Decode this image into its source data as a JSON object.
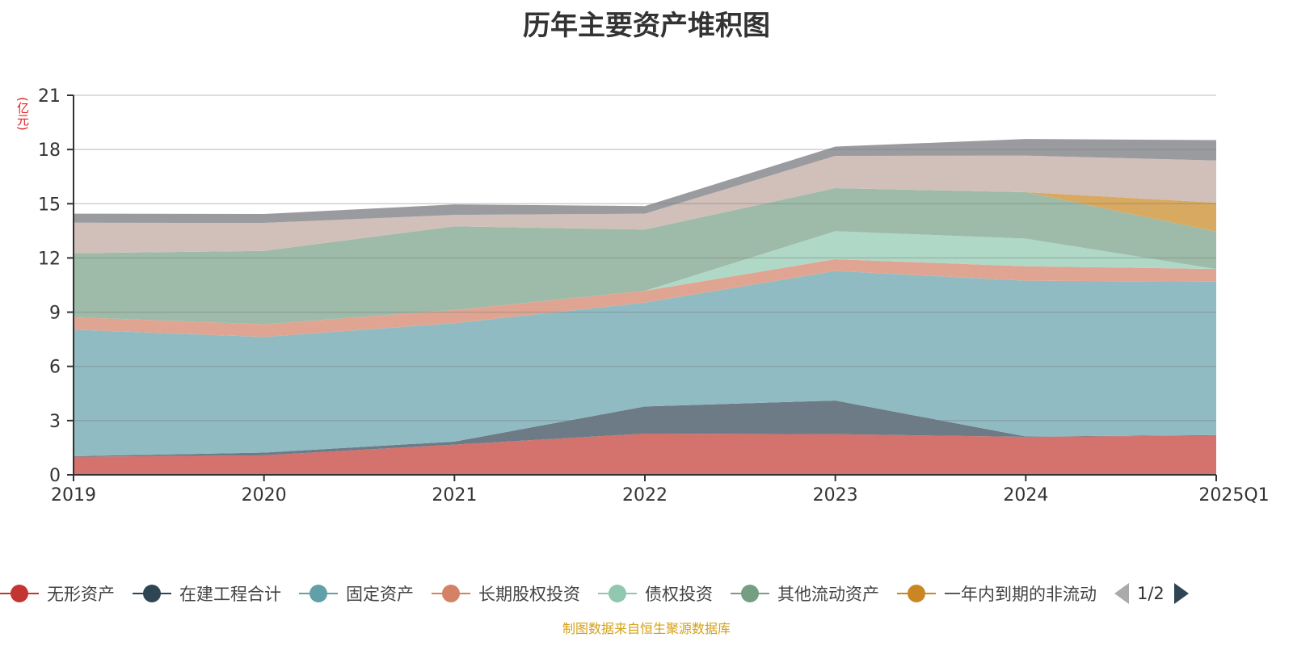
{
  "title": "历年主要资产堆积图",
  "footer": "制图数据来自恒生聚源数据库",
  "legend_pager": "1/2",
  "chart_data": {
    "type": "area",
    "stacked": true,
    "title": "历年主要资产堆积图",
    "ylabel": "(亿元)",
    "xlabel": "",
    "ylim": [
      0,
      21
    ],
    "yticks": [
      0,
      3,
      6,
      9,
      12,
      15,
      18,
      21
    ],
    "grid": true,
    "legend_position": "bottom",
    "categories": [
      "2019",
      "2020",
      "2021",
      "2022",
      "2023",
      "2024",
      "2025Q1"
    ],
    "series": [
      {
        "name": "无形资产",
        "color": "#c23531",
        "fill": "#d4726e",
        "values": [
          1.0,
          1.08,
          1.67,
          2.28,
          2.25,
          2.1,
          2.17
        ]
      },
      {
        "name": "在建工程合计",
        "color": "#2f4554",
        "fill": "#6d7b86",
        "values": [
          0.03,
          0.15,
          0.17,
          1.5,
          1.86,
          0.02,
          0.03
        ]
      },
      {
        "name": "固定资产",
        "color": "#61a0a8",
        "fill": "#90bbc2",
        "values": [
          7.0,
          6.4,
          6.55,
          5.75,
          7.17,
          8.62,
          8.49
        ]
      },
      {
        "name": "长期股权投资",
        "color": "#d48265",
        "fill": "#e0a592",
        "values": [
          0.69,
          0.7,
          0.73,
          0.65,
          0.65,
          0.8,
          0.7
        ]
      },
      {
        "name": "债权投资",
        "color": "#91c7ae",
        "fill": "#afd8c6",
        "values": [
          0,
          0,
          0,
          0,
          1.55,
          1.53,
          0
        ]
      },
      {
        "name": "其他流动资产",
        "color": "#749f83",
        "fill": "#9dbba8",
        "values": [
          3.54,
          4.06,
          4.63,
          3.39,
          2.38,
          2.57,
          2.07
        ]
      },
      {
        "name": "一年内到期的非流动",
        "color": "#ca8622",
        "fill": "#d8a961",
        "values": [
          0,
          0,
          0,
          0,
          0,
          0,
          1.6
        ]
      },
      {
        "name": "",
        "color": "#bda29a",
        "fill": "#d1bfba",
        "values": [
          1.69,
          1.55,
          0.63,
          0.88,
          1.79,
          2.02,
          2.33
        ]
      },
      {
        "name": "",
        "color": "#6e7074",
        "fill": "#9a9b9f",
        "values": [
          0.5,
          0.49,
          0.58,
          0.42,
          0.51,
          0.92,
          1.13
        ]
      }
    ]
  }
}
